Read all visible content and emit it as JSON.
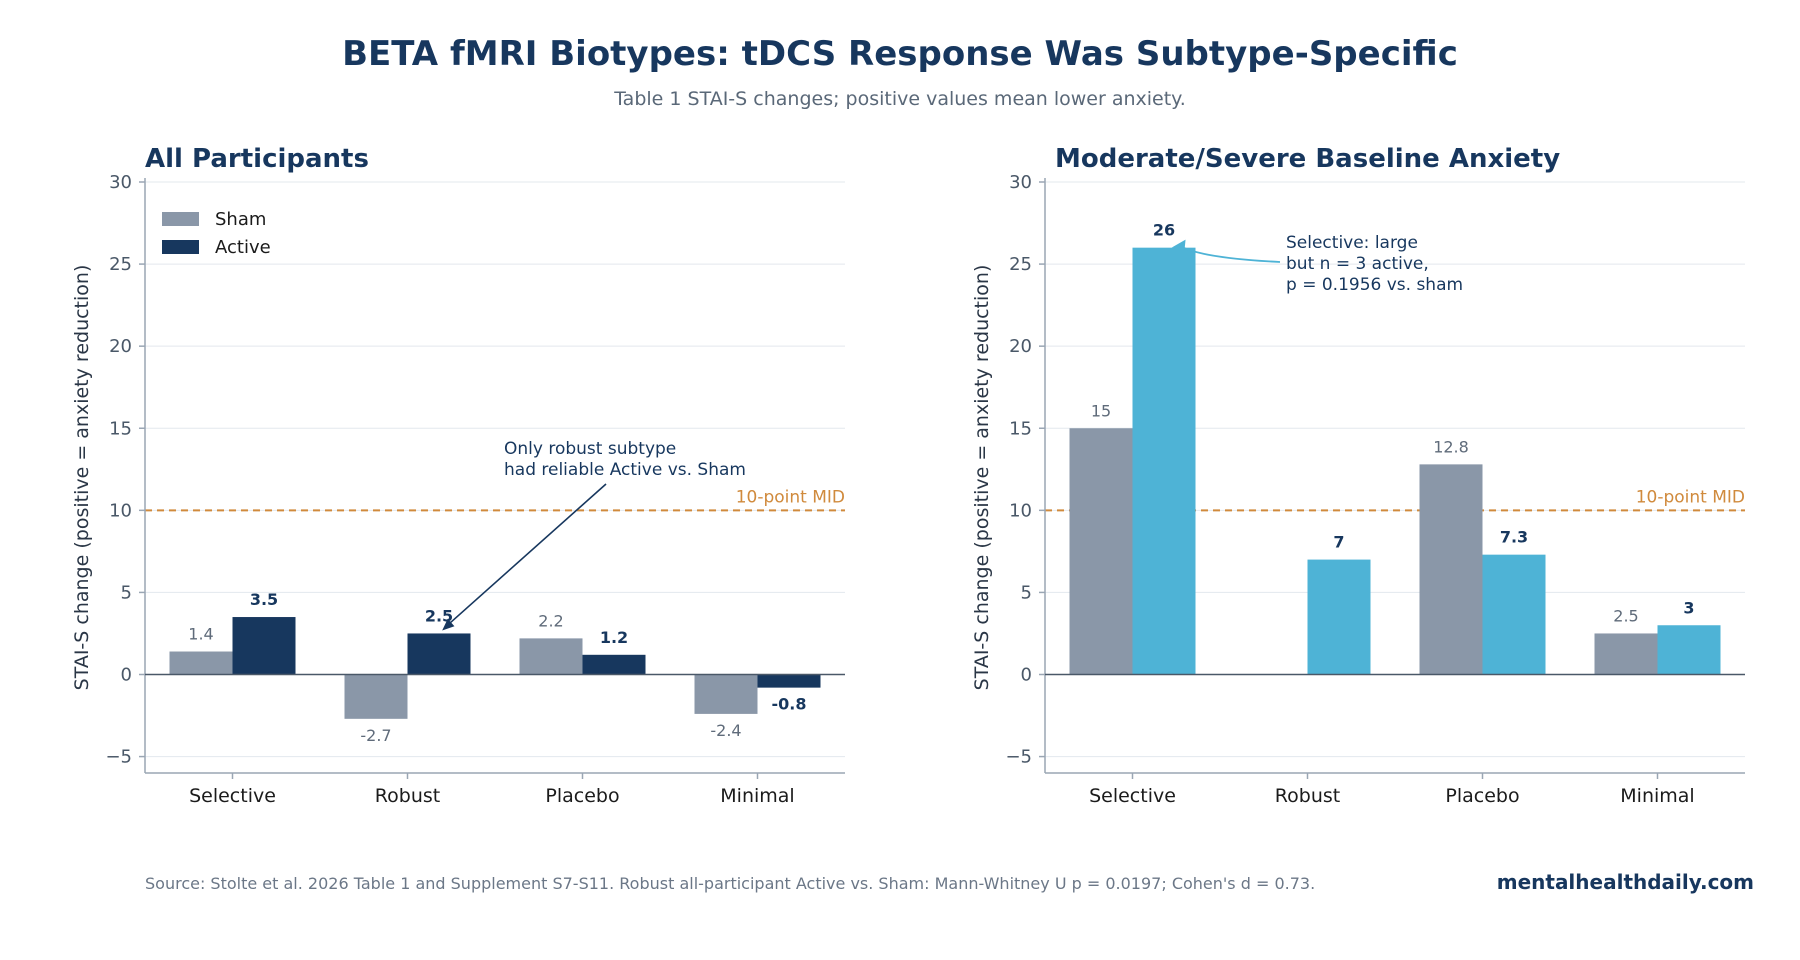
{
  "header": {
    "title": "BETA fMRI Biotypes: tDCS Response Was Subtype-Specific",
    "subtitle": "Table 1 STAI-S changes; positive values mean lower anxiety."
  },
  "footer": {
    "source": "Source: Stolte et al. 2026 Table 1 and Supplement S7-S11. Robust all-participant Active vs. Sham: Mann-Whitney U p = 0.0197; Cohen's d = 0.73.",
    "brand": "mentalhealthdaily.com"
  },
  "colors": {
    "sham": "#8a97a8",
    "active_left": "#17375e",
    "active_right": "#4eb3d6",
    "reference": "#d08a3c",
    "title": "#17375e",
    "tick_text": "#4a5868",
    "grid": "#e3e8ee",
    "axis": "#9aa6b4"
  },
  "chart_data": [
    {
      "type": "bar",
      "title": "All Participants",
      "ylabel": "STAI-S change (positive = anxiety reduction)",
      "xlabel": "",
      "categories": [
        "Selective",
        "Robust",
        "Placebo",
        "Minimal"
      ],
      "series": [
        {
          "name": "Sham",
          "values": [
            1.4,
            -2.7,
            2.2,
            -2.4
          ],
          "labels": [
            "1.4",
            "-2.7",
            "2.2",
            "-2.4"
          ]
        },
        {
          "name": "Active",
          "values": [
            3.5,
            2.5,
            1.2,
            -0.8
          ],
          "labels": [
            "3.5",
            "2.5",
            "1.2",
            "-0.8"
          ]
        }
      ],
      "ylim": [
        -6,
        30
      ],
      "yticks": [
        -5,
        0,
        5,
        10,
        15,
        20,
        25,
        30
      ],
      "ytick_labels": [
        "−5",
        "0",
        "5",
        "10",
        "15",
        "20",
        "25",
        "30"
      ],
      "grid": true,
      "legend": "top-left",
      "reference_line": {
        "y": 10,
        "label": "10-point MID"
      },
      "annotation": {
        "lines": [
          "Only robust subtype",
          "had reliable Active vs. Sham"
        ],
        "points_to": {
          "category": "Robust",
          "series": "Active"
        }
      }
    },
    {
      "type": "bar",
      "title": "Moderate/Severe Baseline Anxiety",
      "ylabel": "STAI-S change (positive = anxiety reduction)",
      "xlabel": "",
      "categories": [
        "Selective",
        "Robust",
        "Placebo",
        "Minimal"
      ],
      "series": [
        {
          "name": "Sham",
          "values": [
            15,
            null,
            12.8,
            2.5
          ],
          "labels": [
            "15",
            "",
            "12.8",
            "2.5"
          ]
        },
        {
          "name": "Active",
          "values": [
            26,
            7,
            7.3,
            3
          ],
          "labels": [
            "26",
            "7",
            "7.3",
            "3"
          ]
        }
      ],
      "ylim": [
        -6,
        30
      ],
      "yticks": [
        -5,
        0,
        5,
        10,
        15,
        20,
        25,
        30
      ],
      "ytick_labels": [
        "−5",
        "0",
        "5",
        "10",
        "15",
        "20",
        "25",
        "30"
      ],
      "grid": true,
      "legend": "none",
      "reference_line": {
        "y": 10,
        "label": "10-point MID"
      },
      "annotation": {
        "lines": [
          "Selective: large",
          "but n = 3 active,",
          "p = 0.1956 vs. sham"
        ],
        "points_to": {
          "category": "Selective",
          "series": "Active"
        }
      }
    }
  ]
}
